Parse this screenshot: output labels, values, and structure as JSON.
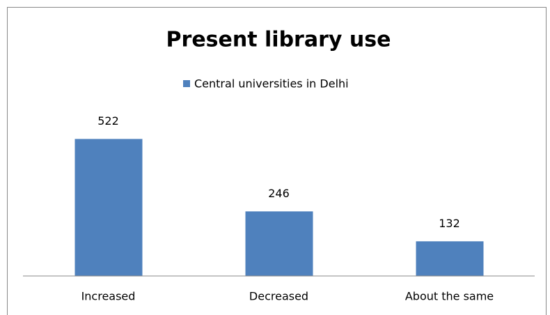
{
  "chart_data": {
    "type": "bar",
    "title": "Present library use",
    "categories": [
      "Increased",
      "Decreased",
      "About the same"
    ],
    "series": [
      {
        "name": "Central universities in Delhi",
        "color": "#4f81bd",
        "values": [
          522,
          246,
          132
        ]
      }
    ],
    "ylim": [
      0,
      600
    ],
    "legend": "top"
  }
}
